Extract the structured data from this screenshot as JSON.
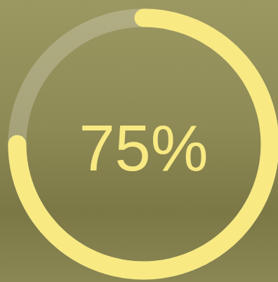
{
  "chart_data": {
    "type": "gauge",
    "values": [
      75
    ],
    "value_labels": [
      "75%"
    ],
    "ylim": [
      0,
      100
    ],
    "color": "#f8e983",
    "data_labels": true,
    "tick_labels": false
  }
}
